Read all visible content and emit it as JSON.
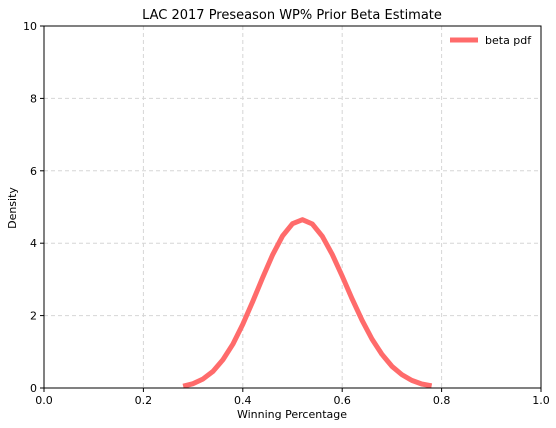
{
  "chart_data": {
    "type": "line",
    "title": "LAC 2017 Preseason WP% Prior Beta Estimate",
    "xlabel": "Winning Percentage",
    "ylabel": "Density",
    "xlim": [
      0,
      1
    ],
    "ylim": [
      0,
      10
    ],
    "xticks": [
      0.0,
      0.2,
      0.4,
      0.6,
      0.8,
      1.0
    ],
    "xtick_labels": [
      "0.0",
      "0.2",
      "0.4",
      "0.6",
      "0.8",
      "1.0"
    ],
    "yticks": [
      0,
      2,
      4,
      6,
      8,
      10
    ],
    "ytick_labels": [
      "0",
      "2",
      "4",
      "6",
      "8",
      "10"
    ],
    "grid": true,
    "legend_position": "top-right",
    "series": [
      {
        "name": "beta pdf",
        "color": "#ff6b6b",
        "x": [
          0.28,
          0.3,
          0.32,
          0.34,
          0.36,
          0.38,
          0.4,
          0.42,
          0.44,
          0.46,
          0.48,
          0.5,
          0.52,
          0.54,
          0.56,
          0.58,
          0.6,
          0.62,
          0.64,
          0.66,
          0.68,
          0.7,
          0.72,
          0.74,
          0.76,
          0.78
        ],
        "y": [
          0.05,
          0.12,
          0.25,
          0.46,
          0.78,
          1.21,
          1.76,
          2.39,
          3.05,
          3.68,
          4.2,
          4.54,
          4.65,
          4.53,
          4.19,
          3.69,
          3.09,
          2.46,
          1.87,
          1.35,
          0.93,
          0.6,
          0.37,
          0.21,
          0.11,
          0.06
        ]
      }
    ]
  }
}
